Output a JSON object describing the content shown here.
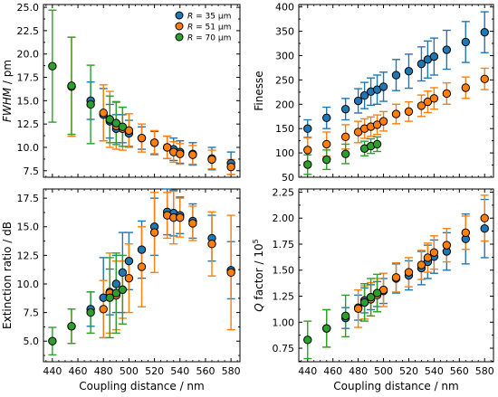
{
  "chart_data": [
    {
      "type": "scatter",
      "panel": "top-left",
      "ylabel_italic": "FWHM",
      "ylabel_rest": " / pm",
      "xlabel": "",
      "xlim": [
        433,
        587
      ],
      "ylim": [
        6.8,
        25.3
      ],
      "xticks": [
        440,
        460,
        480,
        500,
        520,
        540,
        560,
        580
      ],
      "yticks": [
        7.5,
        10.0,
        12.5,
        15.0,
        17.5,
        20.0,
        22.5,
        25.0
      ],
      "ytick_labels": [
        "7.5",
        "10.0",
        "12.5",
        "15.0",
        "17.5",
        "20.0",
        "22.5",
        "25.0"
      ],
      "show_xtick_labels": false,
      "legend": {
        "position": "top-right-of-panel",
        "entries": [
          {
            "prefix": "R",
            "text": " = 35 µm",
            "series": 0
          },
          {
            "prefix": "R",
            "text": " = 51 µm",
            "series": 1
          },
          {
            "prefix": "R",
            "text": " = 70 µm",
            "series": 2
          }
        ]
      },
      "series": [
        {
          "name": "R = 35 µm",
          "color": "#1f77b4",
          "x": [
            470,
            480,
            485,
            490,
            495,
            500,
            510,
            520,
            530,
            535,
            540,
            550,
            565,
            580
          ],
          "y": [
            15.0,
            13.5,
            12.8,
            12.0,
            12.0,
            11.5,
            11.0,
            10.5,
            10.0,
            9.8,
            9.5,
            9.3,
            8.8,
            8.3
          ],
          "err": [
            2.0,
            2.8,
            1.8,
            1.5,
            1.5,
            1.4,
            1.2,
            1.2,
            1.2,
            1.2,
            1.2,
            1.2,
            1.2,
            1.2
          ]
        },
        {
          "name": "R = 51 µm",
          "color": "#ff7f0e",
          "x": [
            455,
            480,
            485,
            490,
            495,
            500,
            510,
            520,
            530,
            535,
            540,
            550,
            565,
            580
          ],
          "y": [
            16.5,
            13.7,
            13.0,
            12.3,
            12.0,
            11.8,
            11.0,
            10.5,
            10.0,
            9.5,
            9.3,
            9.2,
            8.7,
            7.9
          ],
          "err": [
            5.3,
            3.0,
            3.0,
            2.5,
            2.3,
            1.8,
            1.5,
            1.3,
            1.2,
            1.1,
            1.1,
            1.0,
            1.0,
            0.8
          ]
        },
        {
          "name": "R = 70 µm",
          "color": "#2ca02c",
          "x": [
            440,
            455,
            470,
            485,
            490,
            495
          ],
          "y": [
            18.7,
            16.6,
            14.6,
            13.0,
            12.6,
            12.2
          ],
          "err": [
            6.0,
            5.2,
            4.2,
            2.5,
            2.3,
            2.1
          ]
        }
      ]
    },
    {
      "type": "scatter",
      "panel": "top-right",
      "ylabel_italic": "",
      "ylabel_rest": "Finesse",
      "xlabel": "",
      "xlim": [
        433,
        587
      ],
      "ylim": [
        50,
        405
      ],
      "xticks": [
        440,
        460,
        480,
        500,
        520,
        540,
        560,
        580
      ],
      "yticks": [
        50,
        100,
        150,
        200,
        250,
        300,
        350,
        400
      ],
      "ytick_labels": [
        "50",
        "100",
        "150",
        "200",
        "250",
        "300",
        "350",
        "400"
      ],
      "show_xtick_labels": false,
      "series": [
        {
          "name": "R = 35 µm",
          "color": "#1f77b4",
          "x": [
            440,
            455,
            470,
            480,
            485,
            490,
            495,
            500,
            510,
            520,
            530,
            535,
            540,
            550,
            565,
            580
          ],
          "y": [
            150,
            172,
            190,
            207,
            218,
            226,
            230,
            236,
            260,
            268,
            283,
            292,
            298,
            312,
            328,
            348
          ],
          "err": [
            18,
            22,
            22,
            25,
            27,
            28,
            30,
            30,
            32,
            35,
            35,
            38,
            38,
            40,
            42,
            42
          ]
        },
        {
          "name": "R = 51 µm",
          "color": "#ff7f0e",
          "x": [
            440,
            455,
            470,
            480,
            485,
            490,
            495,
            500,
            510,
            520,
            530,
            535,
            540,
            550,
            565,
            580
          ],
          "y": [
            106,
            118,
            133,
            143,
            150,
            154,
            158,
            165,
            180,
            185,
            197,
            205,
            212,
            222,
            234,
            252
          ],
          "err": [
            25,
            25,
            25,
            22,
            20,
            20,
            20,
            20,
            20,
            20,
            22,
            22,
            22,
            22,
            22,
            22
          ]
        },
        {
          "name": "R = 70 µm",
          "color": "#2ca02c",
          "x": [
            440,
            455,
            470,
            485,
            490,
            495
          ],
          "y": [
            76,
            86,
            98,
            109,
            114,
            118
          ],
          "err": [
            20,
            20,
            20,
            15,
            15,
            15
          ]
        }
      ]
    },
    {
      "type": "scatter",
      "panel": "bottom-left",
      "ylabel_italic": "",
      "ylabel_rest": "Extinction ratio / dB",
      "xlabel": "Coupling distance / nm",
      "xlim": [
        433,
        587
      ],
      "ylim": [
        3.2,
        18.3
      ],
      "xticks": [
        440,
        460,
        480,
        500,
        520,
        540,
        560,
        580
      ],
      "yticks": [
        5.0,
        7.5,
        10.0,
        12.5,
        15.0,
        17.5
      ],
      "ytick_labels": [
        "5.0",
        "7.5",
        "10.0",
        "12.5",
        "15.0",
        "17.5"
      ],
      "show_xtick_labels": true,
      "series": [
        {
          "name": "R = 35 µm",
          "color": "#1f77b4",
          "x": [
            470,
            480,
            485,
            490,
            495,
            500,
            510,
            520,
            530,
            535,
            540,
            550,
            565,
            580
          ],
          "y": [
            7.8,
            8.8,
            9.3,
            10.0,
            11.0,
            12.0,
            13.0,
            15.0,
            16.3,
            16.2,
            16.0,
            15.5,
            14.0,
            11.2
          ],
          "err": [
            1.5,
            3.5,
            2.0,
            2.5,
            3.5,
            2.5,
            2.5,
            2.5,
            2.0,
            2.0,
            1.6,
            1.5,
            2.0,
            2.5
          ]
        },
        {
          "name": "R = 51 µm",
          "color": "#ff7f0e",
          "x": [
            455,
            480,
            485,
            490,
            495,
            500,
            510,
            520,
            530,
            535,
            540,
            550,
            565,
            580
          ],
          "y": [
            6.3,
            7.8,
            9.2,
            9.0,
            9.5,
            10.5,
            11.5,
            14.5,
            16.0,
            15.8,
            15.8,
            15.3,
            13.5,
            11.0
          ],
          "err": [
            1.5,
            2.5,
            3.5,
            3.0,
            2.5,
            3.0,
            3.5,
            3.5,
            2.0,
            2.3,
            1.7,
            1.5,
            2.8,
            5.0
          ]
        },
        {
          "name": "R = 70 µm",
          "color": "#2ca02c",
          "x": [
            440,
            455,
            470,
            485,
            490,
            495
          ],
          "y": [
            5.0,
            6.3,
            7.5,
            8.8,
            9.2,
            9.5
          ],
          "err": [
            1.2,
            1.5,
            1.8,
            3.5,
            3.5,
            3.0
          ]
        }
      ]
    },
    {
      "type": "scatter",
      "panel": "bottom-right",
      "ylabel_italic": "Q",
      "ylabel_rest": " factor / 10",
      "ylabel_sup": "5",
      "xlabel": "Coupling distance / nm",
      "xlim": [
        433,
        587
      ],
      "ylim": [
        0.62,
        2.28
      ],
      "xticks": [
        440,
        460,
        480,
        500,
        520,
        540,
        560,
        580
      ],
      "yticks": [
        0.75,
        1.0,
        1.25,
        1.5,
        1.75,
        2.0,
        2.25
      ],
      "ytick_labels": [
        "0.75",
        "1.00",
        "1.25",
        "1.50",
        "1.75",
        "2.00",
        "2.25"
      ],
      "show_xtick_labels": true,
      "series": [
        {
          "name": "R = 35 µm",
          "color": "#1f77b4",
          "x": [
            470,
            480,
            485,
            490,
            495,
            500,
            510,
            520,
            530,
            535,
            540,
            550,
            565,
            580
          ],
          "y": [
            1.04,
            1.14,
            1.21,
            1.24,
            1.27,
            1.3,
            1.42,
            1.45,
            1.52,
            1.58,
            1.63,
            1.68,
            1.8,
            1.9
          ],
          "err": [
            0.1,
            0.12,
            0.12,
            0.12,
            0.12,
            0.12,
            0.14,
            0.14,
            0.16,
            0.16,
            0.16,
            0.18,
            0.24,
            0.28
          ]
        },
        {
          "name": "R = 51 µm",
          "color": "#ff7f0e",
          "x": [
            455,
            480,
            485,
            490,
            495,
            500,
            510,
            520,
            530,
            535,
            540,
            550,
            565,
            580
          ],
          "y": [
            0.94,
            1.13,
            1.19,
            1.22,
            1.26,
            1.31,
            1.43,
            1.48,
            1.55,
            1.62,
            1.67,
            1.74,
            1.86,
            2.0
          ],
          "err": [
            0.18,
            0.18,
            0.16,
            0.16,
            0.16,
            0.16,
            0.14,
            0.14,
            0.14,
            0.14,
            0.16,
            0.16,
            0.16,
            0.22
          ]
        },
        {
          "name": "R = 70 µm",
          "color": "#2ca02c",
          "x": [
            440,
            455,
            470,
            485,
            490,
            495
          ],
          "y": [
            0.83,
            0.94,
            1.06,
            1.19,
            1.24,
            1.28
          ],
          "err": [
            0.18,
            0.18,
            0.2,
            0.18,
            0.18,
            0.18
          ]
        }
      ]
    }
  ]
}
